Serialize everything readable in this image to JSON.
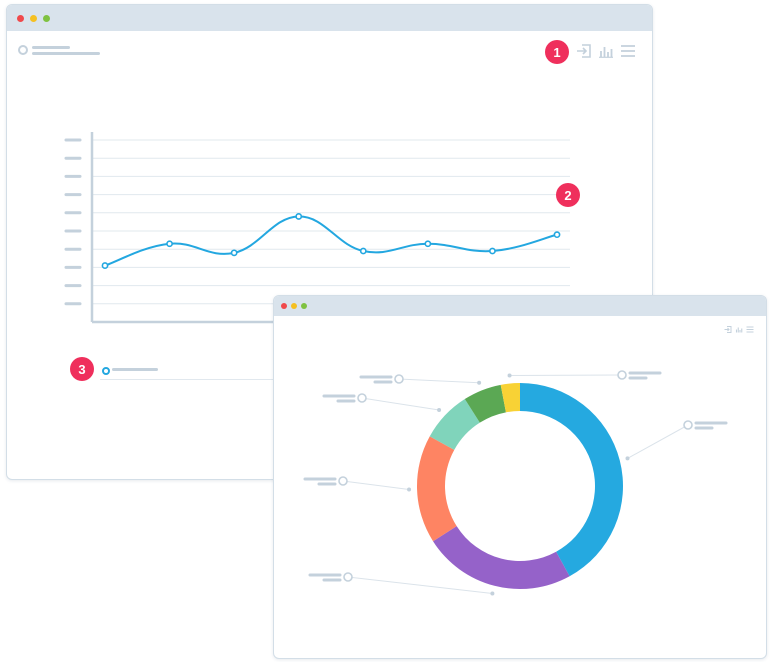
{
  "colors": {
    "window_border": "#d3dee7",
    "titlebar": "#d9e3ec",
    "placeholder": "#c4d1dc",
    "line": "#23a7e0",
    "grid": "#e1e8ee",
    "axis": "#c4d1dc",
    "badge": "#ef2f5c",
    "mac_red": "#f0494b",
    "mac_yellow": "#f5c021",
    "mac_green": "#7fc241"
  },
  "badges": [
    "1",
    "2",
    "3"
  ],
  "toolbar_icons": [
    "login-icon",
    "bar-chart-icon",
    "menu-icon"
  ],
  "chart_data": [
    {
      "type": "line",
      "title": "",
      "xlabel": "",
      "ylabel": "",
      "x": [
        1,
        2,
        3,
        4,
        5,
        6,
        7,
        8
      ],
      "series": [
        {
          "values": [
            3.1,
            4.3,
            3.8,
            5.8,
            3.9,
            4.3,
            3.9,
            4.8
          ],
          "color": "#23a7e0"
        }
      ],
      "ylim": [
        0,
        10
      ],
      "y_tick_count": 10,
      "grid": true
    },
    {
      "type": "pie",
      "donut": true,
      "slices": [
        {
          "value": 42,
          "color": "#25a9e0"
        },
        {
          "value": 24,
          "color": "#9562c9"
        },
        {
          "value": 17,
          "color": "#fe8463"
        },
        {
          "value": 8,
          "color": "#80d4bb"
        },
        {
          "value": 6,
          "color": "#5ba854"
        },
        {
          "value": 3,
          "color": "#f8d235"
        }
      ]
    }
  ]
}
